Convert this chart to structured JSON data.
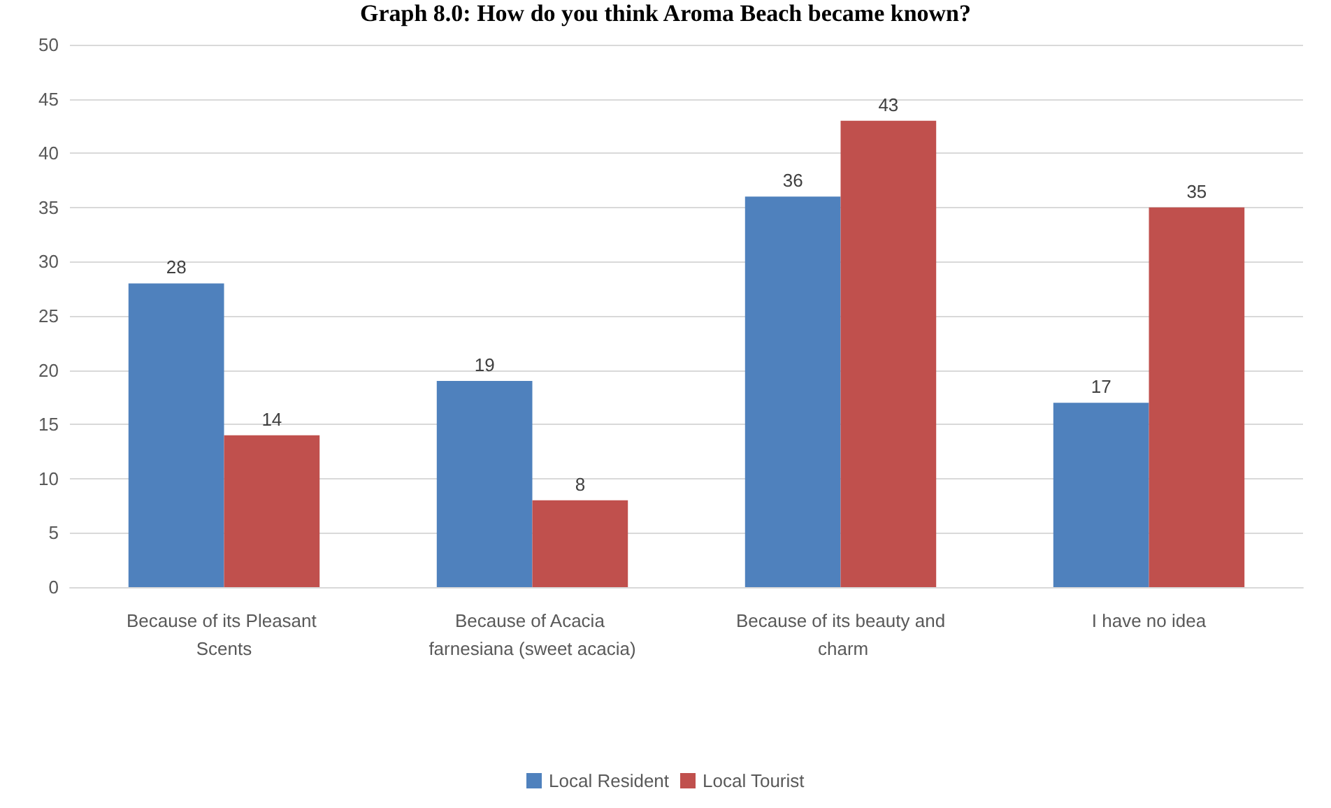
{
  "chart_data": {
    "type": "bar",
    "title": "Graph 8.0: How do you think Aroma Beach became known?",
    "categories": [
      "Because of its Pleasant Scents",
      "Because of Acacia farnesiana (sweet acacia)",
      "Because of its beauty and charm",
      "I have no idea"
    ],
    "series": [
      {
        "name": "Local Resident",
        "color": "#4f81bd",
        "values": [
          28,
          19,
          36,
          17
        ]
      },
      {
        "name": "Local Tourist",
        "color": "#c0504d",
        "values": [
          14,
          8,
          43,
          35
        ]
      }
    ],
    "ylim": [
      0,
      50
    ],
    "yticks": [
      0,
      5,
      10,
      15,
      20,
      25,
      30,
      35,
      40,
      45,
      50
    ],
    "grid": "y",
    "legend": "bottom",
    "data_labels": true
  }
}
